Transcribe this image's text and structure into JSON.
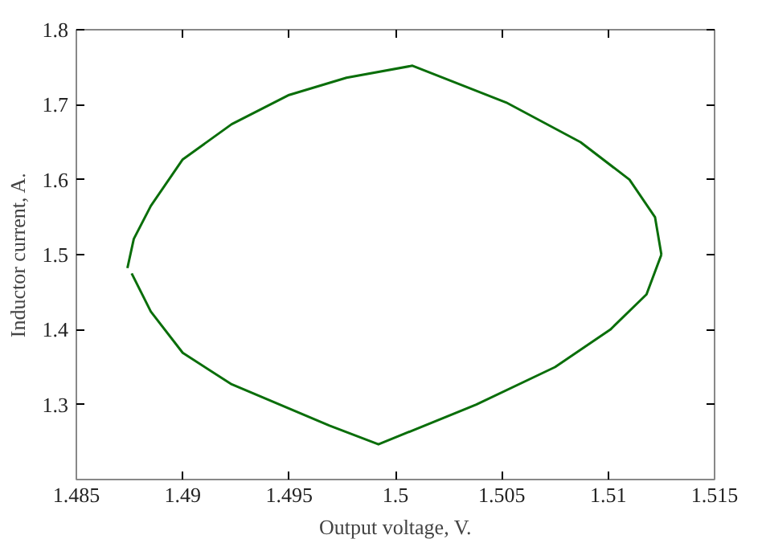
{
  "chart_data": {
    "type": "line",
    "xlabel": "Output voltage, V.",
    "ylabel": "Inductor current, A.",
    "xlim": [
      1.485,
      1.515
    ],
    "ylim": [
      1.2,
      1.8
    ],
    "xticks": [
      1.485,
      1.49,
      1.495,
      1.5,
      1.505,
      1.51,
      1.515
    ],
    "yticks": [
      1.3,
      1.4,
      1.5,
      1.6,
      1.7,
      1.8
    ],
    "grid": false,
    "marker": "none",
    "line_style": "solid",
    "series": [
      {
        "color": "#0a6e0a",
        "x": [
          1.4874,
          1.4877,
          1.4885,
          1.49,
          1.4923,
          1.495,
          1.4977,
          1.5008,
          1.5052,
          1.5087,
          1.511,
          1.5122,
          1.5125
        ],
        "values": [
          1.482,
          1.521,
          1.565,
          1.627,
          1.674,
          1.713,
          1.736,
          1.752,
          1.703,
          1.65,
          1.6,
          1.55,
          1.5
        ]
      },
      {
        "color": "#0a6e0a",
        "x": [
          1.4876,
          1.4885,
          1.49,
          1.4923,
          1.4969,
          1.4992,
          1.5038,
          1.5075,
          1.5101,
          1.5118,
          1.5125
        ],
        "values": [
          1.475,
          1.424,
          1.369,
          1.327,
          1.272,
          1.247,
          1.3,
          1.35,
          1.4,
          1.447,
          1.5
        ]
      }
    ]
  }
}
